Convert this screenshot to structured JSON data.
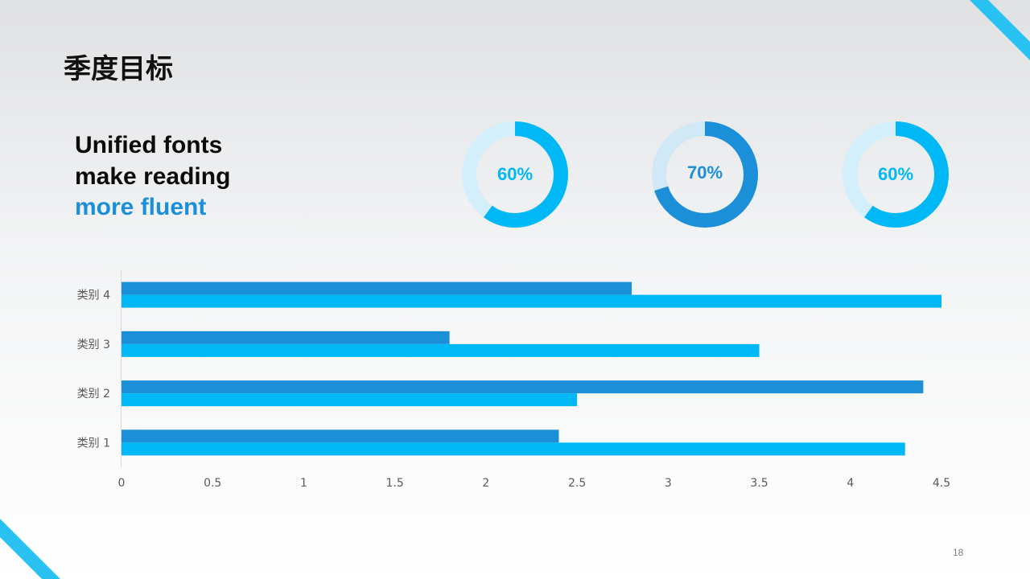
{
  "slide": {
    "title": "季度目标",
    "tagline": [
      "Unified fonts",
      "make reading",
      "more fluent"
    ],
    "page_number": "18"
  },
  "colors": {
    "primary": "#00b8f5",
    "secondary": "#1b8fd8",
    "track": "#d2effb",
    "track_dark": "#d1e8f7"
  },
  "donuts": [
    {
      "label": "60%",
      "value": 0.6,
      "color": "#00b8f5",
      "track": "#d2effb"
    },
    {
      "label": "70%",
      "value": 0.7,
      "color": "#1b8fd8",
      "track": "#d1e8f7"
    },
    {
      "label": "60%",
      "value": 0.6,
      "color": "#00b8f5",
      "track": "#d2effb"
    }
  ],
  "chart_data": {
    "type": "bar",
    "orientation": "horizontal",
    "categories": [
      "类别 1",
      "类别 2",
      "类别 3",
      "类别 4"
    ],
    "series": [
      {
        "values": [
          2.4,
          4.4,
          1.8,
          2.8
        ],
        "color": "#1b8fd8"
      },
      {
        "values": [
          4.3,
          2.5,
          3.5,
          4.5
        ],
        "color": "#00b8f5"
      }
    ],
    "x_ticks": [
      "0",
      "0.5",
      "1",
      "1.5",
      "2",
      "2.5",
      "3",
      "3.5",
      "4",
      "4.5"
    ],
    "xlim": [
      0,
      4.5
    ],
    "grid": false,
    "legend": false
  }
}
